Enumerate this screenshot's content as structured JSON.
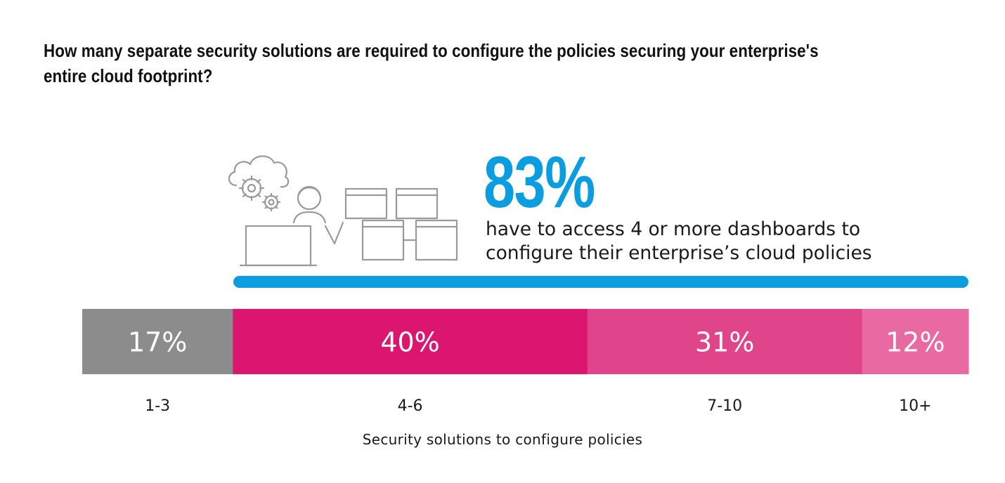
{
  "title": "How many separate security solutions are required to configure the policies securing your enterprise's entire cloud footprint?",
  "highlight": {
    "value": "83%",
    "line1": "have to access 4 or more dashboards to",
    "line2": "configure their enterprise’s cloud policies",
    "color": "#0a9ee0"
  },
  "icons": [
    "cloud-gears-icon",
    "person-laptop-icon",
    "dashboard-windows-icon"
  ],
  "chart_data": {
    "type": "bar",
    "orientation": "horizontal-stacked",
    "categories": [
      "1-3",
      "4-6",
      "7-10",
      "10+"
    ],
    "values": [
      17,
      40,
      31,
      12
    ],
    "value_labels": [
      "17%",
      "40%",
      "31%",
      "12%"
    ],
    "colors": [
      "#8c8c8c",
      "#dc1570",
      "#e0458c",
      "#e96aa3"
    ],
    "xlabel": "Security solutions to configure policies",
    "ylabel": "",
    "grid": false,
    "legend": "none"
  }
}
